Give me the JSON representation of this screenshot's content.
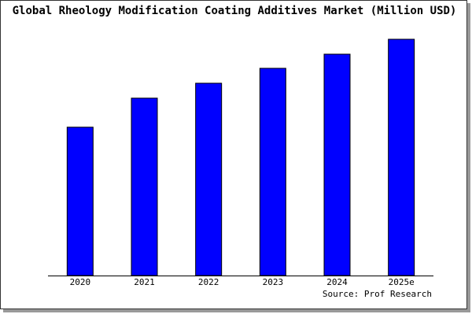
{
  "chart_data": {
    "type": "bar",
    "title": "Global Rheology Modification Coating Additives Market (Million USD)",
    "categories": [
      "2020",
      "2021",
      "2022",
      "2023",
      "2024",
      "2025e"
    ],
    "values": [
      189,
      226,
      245,
      264,
      282,
      301
    ],
    "color": "#0000ff",
    "ylim": [
      0,
      301
    ],
    "source": "Source: Prof Research"
  }
}
